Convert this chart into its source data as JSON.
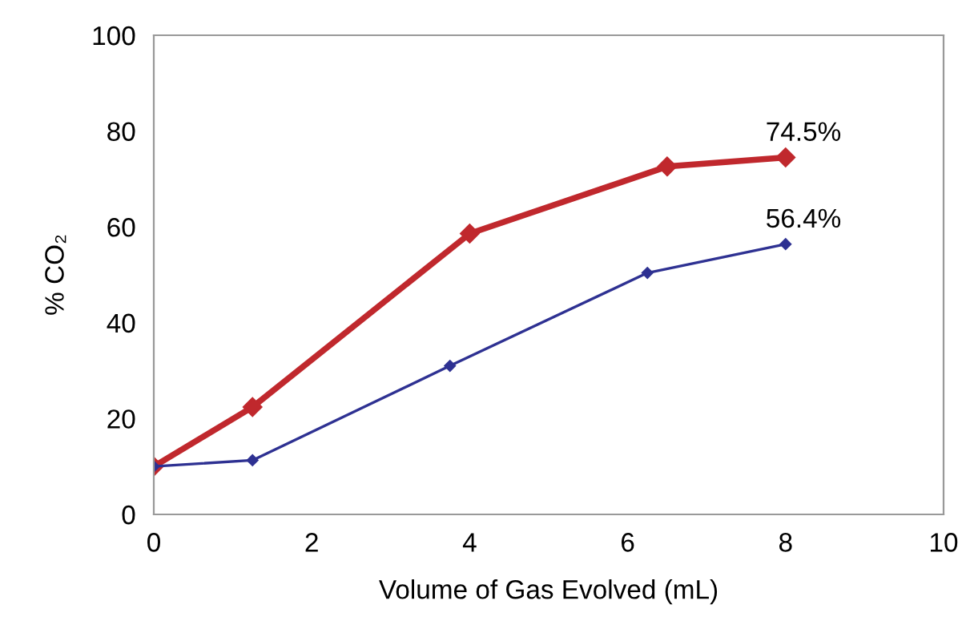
{
  "chart_data": {
    "type": "line",
    "xlabel": "Volume of Gas Evolved (mL)",
    "ylabel": "% CO₂",
    "series": [
      {
        "color": "#c0282d",
        "x": [
          0,
          1.25,
          4.0,
          6.5,
          8.0
        ],
        "values": [
          10,
          22.4,
          58.6,
          72.6,
          74.5
        ]
      },
      {
        "color": "#2e3192",
        "x": [
          0,
          1.25,
          3.75,
          6.25,
          8.0
        ],
        "values": [
          10,
          11.3,
          31.0,
          50.4,
          56.4
        ]
      }
    ],
    "annotations": [
      {
        "text": "74.5%",
        "x": 8.0,
        "y": 74.5
      },
      {
        "text": "56.4%",
        "x": 8.0,
        "y": 56.4
      }
    ],
    "xlim": [
      0,
      10
    ],
    "ylim": [
      0,
      100
    ],
    "xticks": [
      0,
      2,
      4,
      6,
      8,
      10
    ],
    "yticks": [
      0,
      20,
      40,
      60,
      80,
      100
    ],
    "marker": "diamond",
    "line_style": "solid",
    "grid": false,
    "legend": false
  }
}
